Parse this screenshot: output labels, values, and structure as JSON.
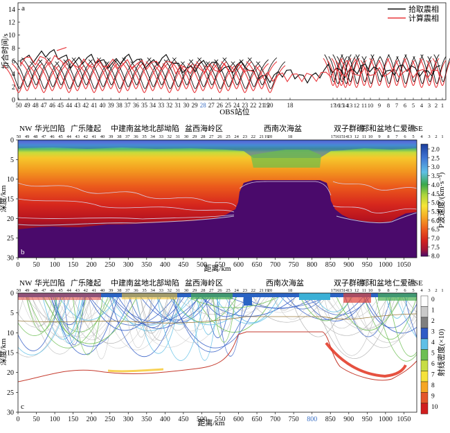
{
  "panel_a": {
    "letter": "a",
    "ylabel": "折合时间/s",
    "yticks": [
      0,
      2,
      4,
      6,
      8,
      10,
      12,
      14
    ],
    "xlabel": "OBS站位",
    "stations_left": [
      "50",
      "49",
      "48",
      "47",
      "46",
      "45",
      "44",
      "43",
      "42",
      "41",
      "40",
      "39",
      "38",
      "37",
      "36",
      "35",
      "34",
      "33",
      "32",
      "31",
      "30",
      "29",
      "28",
      "27",
      "26",
      "25",
      "24",
      "23",
      "22",
      "21",
      "20"
    ],
    "station_19": "19",
    "station_18": "18",
    "stations_right": [
      "17",
      "16",
      "15",
      "14",
      "13",
      "12",
      "11",
      "10",
      "9",
      "8",
      "7",
      "6",
      "5",
      "4",
      "3",
      "2",
      "1"
    ],
    "highlight_station": "28",
    "legend": [
      {
        "label": "拾取震相",
        "color": "#111111"
      },
      {
        "label": "计算震相",
        "color": "#e8383d"
      }
    ]
  },
  "panel_b": {
    "letter": "b",
    "nw": "NW",
    "se": "SE",
    "regions": [
      "华光凹陷",
      "广乐隆起",
      "中建南盆地北部坳陷",
      "盆西海岭区",
      "西南次海盆",
      "双子群礁",
      "郑和盆地",
      "仁爱礁"
    ],
    "ylabel": "深度/km",
    "yticks": [
      0,
      5,
      10,
      15,
      20,
      25,
      30
    ],
    "xlabel": "距离/km",
    "xticks": [
      0,
      50,
      100,
      150,
      200,
      250,
      300,
      350,
      400,
      450,
      500,
      550,
      600,
      650,
      700,
      750,
      800,
      850,
      900,
      950,
      1000,
      1050
    ],
    "colorbar_label": "P波速度/(km·s⁻¹)",
    "colorbar_ticks": [
      "2.0",
      "2.5",
      "3.0",
      "3.5",
      "4.0",
      "4.5",
      "5.0",
      "5.5",
      "6.0",
      "6.5",
      "7.0",
      "7.5",
      "8.0"
    ]
  },
  "panel_c": {
    "letter": "c",
    "ylabel": "深度/km",
    "yticks": [
      0,
      5,
      10,
      15,
      20,
      25,
      30
    ],
    "xlabel": "距离/km",
    "xticks": [
      0,
      50,
      100,
      150,
      200,
      250,
      300,
      350,
      400,
      450,
      500,
      550,
      600,
      650,
      700,
      750,
      800,
      850,
      900,
      950,
      1000,
      1050
    ],
    "highlight_tick": "800",
    "colorbar_label": "射线密度(×10)",
    "colorbar_ticks": [
      "0",
      "1",
      "2",
      "3",
      "4",
      "5",
      "6",
      "7",
      "8",
      "9",
      "10"
    ]
  },
  "colors": {
    "pick": "#111111",
    "calc": "#e8383d",
    "highlight": "#3b6fc4",
    "mantle": "#4a0a6b"
  }
}
